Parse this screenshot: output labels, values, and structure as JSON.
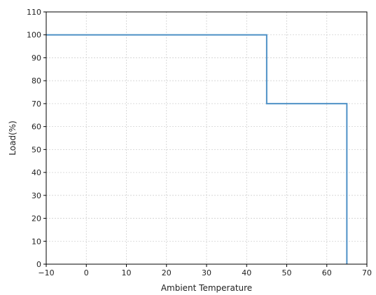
{
  "chart_data": {
    "type": "line",
    "title": "",
    "xlabel": "Ambient Temperature",
    "ylabel": "Load(%)",
    "xlim": [
      -10,
      70
    ],
    "ylim": [
      0,
      110
    ],
    "x_ticks": [
      -10,
      0,
      10,
      20,
      30,
      40,
      50,
      60,
      70
    ],
    "x_tick_labels": [
      "−10",
      "0",
      "10",
      "20",
      "30",
      "40",
      "50",
      "60",
      "70"
    ],
    "y_ticks": [
      0,
      10,
      20,
      30,
      40,
      50,
      60,
      70,
      80,
      90,
      100,
      110
    ],
    "y_tick_labels": [
      "0",
      "10",
      "20",
      "30",
      "40",
      "50",
      "60",
      "70",
      "80",
      "90",
      "100",
      "110"
    ],
    "grid": true,
    "series": [
      {
        "color": "#4f91c6",
        "points": [
          [
            -10,
            100
          ],
          [
            45,
            100
          ],
          [
            45,
            70
          ],
          [
            65,
            70
          ],
          [
            65,
            0
          ]
        ]
      }
    ]
  }
}
